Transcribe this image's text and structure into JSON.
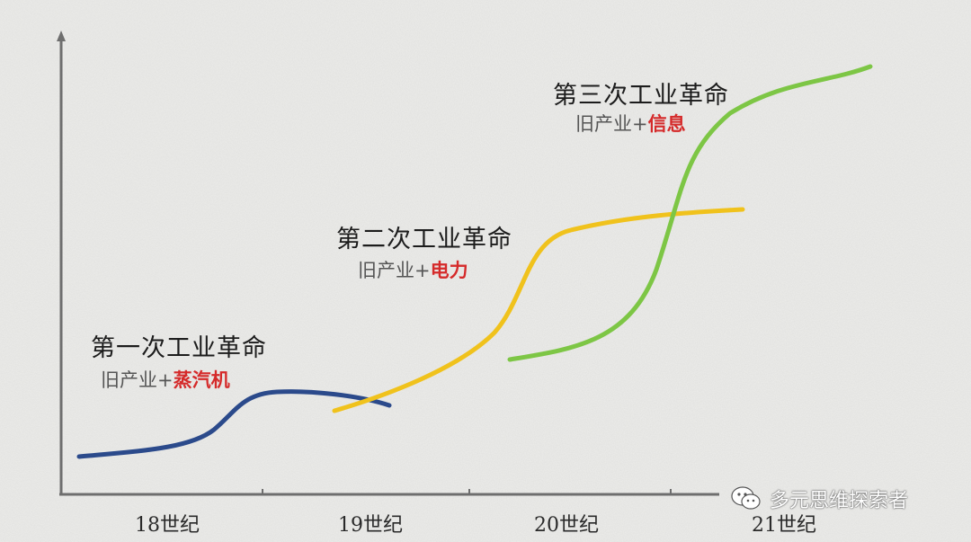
{
  "colors": {
    "background": "#ededeb",
    "axis": "#6e6e6e",
    "first": "#2b4a8b",
    "second": "#f0c21c",
    "third": "#7dc645",
    "highlight": "#d52a2a"
  },
  "revolutions": [
    {
      "title": "第一次工业革命",
      "base": "旧产业+",
      "tech": "蒸汽机",
      "color": "#2b4a8b"
    },
    {
      "title": "第二次工业革命",
      "base": "旧产业+",
      "tech": "电力",
      "color": "#f0c21c"
    },
    {
      "title": "第三次工业革命",
      "base": "旧产业+",
      "tech": "信息",
      "color": "#7dc645"
    }
  ],
  "axis": {
    "ticks": [
      "18世纪",
      "19世纪",
      "20世纪",
      "21世纪"
    ]
  },
  "watermark": {
    "icon": "wechat-icon",
    "text": "多元思维探索者"
  }
}
